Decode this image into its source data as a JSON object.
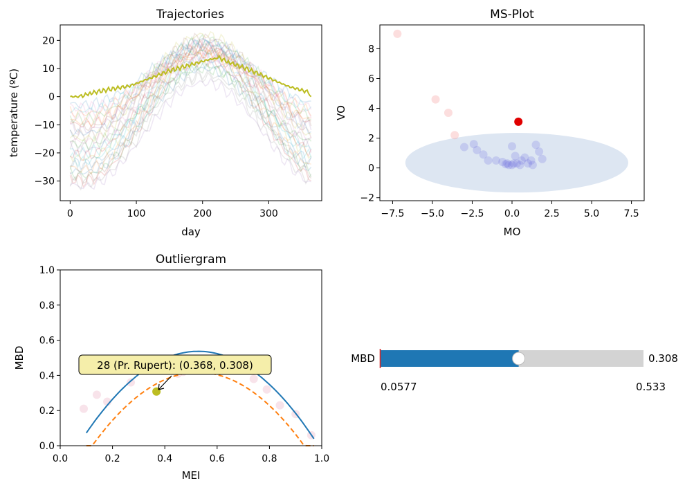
{
  "colors": {
    "highlight_curve": "#bcbd22",
    "ms_highlight": "#e00000",
    "ms_points": "#6b6be0",
    "ms_outliers": "#f5a0a0",
    "ellipse": "#dde6f2",
    "fit_curve": "#1f77b4",
    "lower_bound": "#ff7f0e",
    "slider_fill": "#1f77b4",
    "slider_track": "#d3d3d3",
    "slider_marker": "#d62728",
    "annotation_fill": "#f5eeaa"
  },
  "chart_data": [
    {
      "id": "trajectories",
      "type": "line",
      "title": "Trajectories",
      "xlabel": "day",
      "ylabel": "temperature (ºC)",
      "xlim": [
        -15,
        380
      ],
      "ylim": [
        -37,
        25.5
      ],
      "xticks": [
        0,
        100,
        200,
        300
      ],
      "yticks": [
        -30,
        -20,
        -10,
        0,
        10,
        20
      ],
      "background_series": [
        {
          "winter": -3,
          "summer": 18,
          "color": "#1f77b4"
        },
        {
          "winter": -6,
          "summer": 17,
          "color": "#ff7f0e"
        },
        {
          "winter": -8,
          "summer": 20,
          "color": "#2ca02c"
        },
        {
          "winter": -10,
          "summer": 16,
          "color": "#d62728"
        },
        {
          "winter": -12,
          "summer": 19,
          "color": "#9467bd"
        },
        {
          "winter": -14,
          "summer": 17,
          "color": "#8c564b"
        },
        {
          "winter": -16,
          "summer": 15,
          "color": "#e377c2"
        },
        {
          "winter": -18,
          "summer": 18,
          "color": "#7f7f7f"
        },
        {
          "winter": -20,
          "summer": 14,
          "color": "#17becf"
        },
        {
          "winter": -22,
          "summer": 16,
          "color": "#bcbd22"
        },
        {
          "winter": -24,
          "summer": 12,
          "color": "#1f77b4"
        },
        {
          "winter": -26,
          "summer": 15,
          "color": "#ff7f0e"
        },
        {
          "winter": -28,
          "summer": 11,
          "color": "#2ca02c"
        },
        {
          "winter": -30,
          "summer": 13,
          "color": "#d62728"
        },
        {
          "winter": -32,
          "summer": 5,
          "color": "#9467bd"
        },
        {
          "winter": -11,
          "summer": 21,
          "color": "#8c564b"
        },
        {
          "winter": -7,
          "summer": 19,
          "color": "#e377c2"
        },
        {
          "winter": -5,
          "summer": 16,
          "color": "#17becf"
        },
        {
          "winter": -25,
          "summer": 8,
          "color": "#7f7f7f"
        },
        {
          "winter": -17,
          "summer": 10,
          "color": "#2ca02c"
        },
        {
          "winter": -13,
          "summer": 20,
          "color": "#1f77b4"
        },
        {
          "winter": -21,
          "summer": 18,
          "color": "#d62728"
        },
        {
          "winter": -9,
          "summer": 15,
          "color": "#ff7f0e"
        },
        {
          "winter": -19,
          "summer": 13,
          "color": "#9467bd"
        },
        {
          "winter": -29,
          "summer": 17,
          "color": "#8c564b"
        },
        {
          "winter": -15,
          "summer": 22,
          "color": "#bcbd22"
        },
        {
          "winter": -23,
          "summer": 19,
          "color": "#17becf"
        },
        {
          "winter": -4,
          "summer": 14,
          "color": "#e377c2"
        },
        {
          "winter": -27,
          "summer": 10,
          "color": "#1f77b4"
        },
        {
          "winter": -31,
          "summer": 7,
          "color": "#7f7f7f"
        }
      ],
      "highlight_series": {
        "name": "28 (Pr. Rupert)",
        "points": [
          [
            0,
            0
          ],
          [
            15,
            0
          ],
          [
            30,
            1.2
          ],
          [
            60,
            2.6
          ],
          [
            90,
            3.8
          ],
          [
            120,
            6.5
          ],
          [
            150,
            9.2
          ],
          [
            180,
            11.2
          ],
          [
            210,
            13.2
          ],
          [
            225,
            13.8
          ],
          [
            240,
            12.2
          ],
          [
            270,
            9.6
          ],
          [
            300,
            6.6
          ],
          [
            330,
            3.6
          ],
          [
            360,
            1.6
          ],
          [
            364,
            0
          ]
        ]
      }
    },
    {
      "id": "ms-plot",
      "type": "scatter",
      "title": "MS-Plot",
      "xlabel": "MO",
      "ylabel": "VO",
      "xlim": [
        -8.3,
        8.3
      ],
      "ylim": [
        -2.2,
        9.6
      ],
      "xticks": [
        -7.5,
        -5.0,
        -2.5,
        0.0,
        2.5,
        5.0,
        7.5
      ],
      "yticks": [
        -2,
        0,
        2,
        4,
        6,
        8
      ],
      "ellipse": {
        "center": [
          0.3,
          0.35
        ],
        "rx": 7.0,
        "ry": 2.0
      },
      "outliers": [
        [
          -7.2,
          9.0
        ],
        [
          -4.8,
          4.6
        ],
        [
          -4.0,
          3.7
        ],
        [
          -3.6,
          2.2
        ]
      ],
      "inliers": [
        [
          -3.0,
          1.4
        ],
        [
          -2.4,
          1.6
        ],
        [
          -2.2,
          1.2
        ],
        [
          -1.8,
          0.9
        ],
        [
          -1.5,
          0.5
        ],
        [
          -1.0,
          0.5
        ],
        [
          -0.6,
          0.4
        ],
        [
          -0.3,
          0.3
        ],
        [
          0.0,
          1.45
        ],
        [
          -0.2,
          0.2
        ],
        [
          0.1,
          0.3
        ],
        [
          0.2,
          0.8
        ],
        [
          0.3,
          0.3
        ],
        [
          0.5,
          0.2
        ],
        [
          0.6,
          0.5
        ],
        [
          0.8,
          0.7
        ],
        [
          1.0,
          0.3
        ],
        [
          1.2,
          0.5
        ],
        [
          1.3,
          0.2
        ],
        [
          1.5,
          1.55
        ],
        [
          1.7,
          1.1
        ],
        [
          1.9,
          0.6
        ],
        [
          0.0,
          0.2
        ],
        [
          -0.4,
          0.25
        ]
      ],
      "highlight": {
        "label": "28 (Pr. Rupert)",
        "mo": 0.4,
        "vo": 3.1
      }
    },
    {
      "id": "outliergram",
      "type": "scatter",
      "title": "Outliergram",
      "xlabel": "MEI",
      "ylabel": "MBD",
      "xlim": [
        0.0,
        1.0
      ],
      "ylim": [
        0.0,
        1.0
      ],
      "xticks": [
        0.0,
        0.2,
        0.4,
        0.6,
        0.8,
        1.0
      ],
      "yticks": [
        0.0,
        0.2,
        0.4,
        0.6,
        0.8,
        1.0
      ],
      "xtick_labels": [
        "0.0",
        "0.2",
        "0.4",
        "0.6",
        "0.8",
        "1.0"
      ],
      "ytick_labels": [
        "0.0",
        "0.2",
        "0.4",
        "0.6",
        "0.8",
        "1.0"
      ],
      "parabola": {
        "a0": -0.17,
        "a1": 2.68,
        "a2": -2.54,
        "x_range": [
          0.1,
          0.97
        ]
      },
      "lower_bound_offset": 0.12,
      "points": [
        [
          0.09,
          0.21
        ],
        [
          0.14,
          0.29
        ],
        [
          0.18,
          0.25
        ],
        [
          0.27,
          0.36
        ],
        [
          0.45,
          0.41
        ],
        [
          0.47,
          0.42
        ],
        [
          0.53,
          0.44
        ],
        [
          0.58,
          0.43
        ],
        [
          0.63,
          0.44
        ],
        [
          0.74,
          0.38
        ],
        [
          0.79,
          0.32
        ],
        [
          0.84,
          0.23
        ],
        [
          0.9,
          0.18
        ],
        [
          0.96,
          0.06
        ]
      ],
      "highlight": {
        "label": "28 (Pr. Rupert)",
        "mei": 0.368,
        "mbd": 0.308
      },
      "annotation": "28 (Pr. Rupert): (0.368, 0.308)"
    }
  ],
  "slider": {
    "label": "MBD",
    "min": 0.0577,
    "max": 0.533,
    "value": 0.308,
    "min_text": "0.0577",
    "max_text": "0.533",
    "value_text": "0.308"
  }
}
